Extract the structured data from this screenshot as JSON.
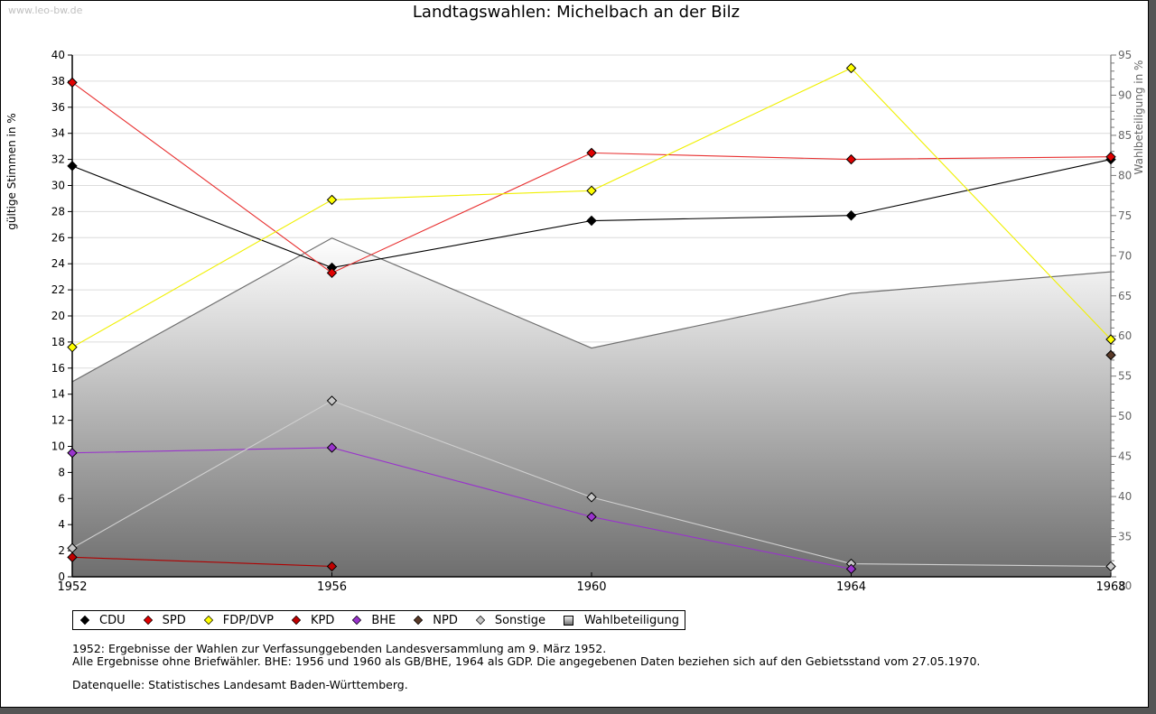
{
  "watermark": "www.leo-bw.de",
  "chart_data": {
    "type": "line",
    "title": "Landtagswahlen: Michelbach an der Bilz",
    "x": [
      1952,
      1956,
      1960,
      1964,
      1968
    ],
    "x_tick_labels": [
      "1952",
      "1956",
      "1960",
      "1964",
      "1968"
    ],
    "ylabel": "gültige Stimmen in %",
    "ylabel_right": "Wahlbeteiligung in %",
    "ylim": [
      0,
      40
    ],
    "ylim_right": [
      30,
      95
    ],
    "y_ticks": [
      "0",
      "2",
      "4",
      "6",
      "8",
      "10",
      "12",
      "14",
      "16",
      "18",
      "20",
      "22",
      "24",
      "26",
      "28",
      "30",
      "32",
      "34",
      "36",
      "38",
      "40"
    ],
    "y_ticks_right": [
      "30",
      "35",
      "40",
      "45",
      "50",
      "55",
      "60",
      "65",
      "70",
      "75",
      "80",
      "85",
      "90",
      "95"
    ],
    "grid": true,
    "legend_position": "bottom-left",
    "series": [
      {
        "name": "CDU",
        "color": "#000000",
        "line_color": "#000000",
        "values": [
          31.5,
          23.7,
          27.3,
          27.7,
          32.0
        ]
      },
      {
        "name": "SPD",
        "color": "#e00000",
        "line_color": "#e83030",
        "values": [
          37.9,
          23.3,
          32.5,
          32.0,
          32.2
        ]
      },
      {
        "name": "FDP/DVP",
        "color": "#ffff00",
        "line_color": "#f0f000",
        "values": [
          17.6,
          28.9,
          29.6,
          39.0,
          18.2
        ]
      },
      {
        "name": "KPD",
        "color": "#c00000",
        "line_color": "#b00000",
        "values": [
          1.5,
          0.8,
          null,
          null,
          null
        ]
      },
      {
        "name": "BHE",
        "color": "#9933cc",
        "line_color": "#9933cc",
        "values": [
          9.5,
          9.9,
          4.6,
          0.6,
          null
        ]
      },
      {
        "name": "NPD",
        "color": "#5a3a28",
        "line_color": "#5a3a28",
        "values": [
          null,
          null,
          null,
          null,
          17.0
        ]
      },
      {
        "name": "Sonstige",
        "color": "#c8c8c8",
        "line_color": "#d0d0d0",
        "values": [
          2.2,
          13.5,
          6.1,
          1.0,
          0.8
        ]
      }
    ],
    "area_series": {
      "name": "Wahlbeteiligung",
      "axis": "right",
      "color": "#808080",
      "values": [
        54.3,
        72.2,
        58.5,
        65.3,
        68.0
      ]
    }
  },
  "notes": [
    "1952: Ergebnisse der Wahlen zur Verfassunggebenden Landesversammlung am 9. März 1952.",
    "Alle Ergebnisse ohne Briefwähler. BHE: 1956 und 1960 als GB/BHE, 1964 als GDP. Die angegebenen Daten beziehen sich auf den Gebietsstand vom 27.05.1970."
  ],
  "source": "Datenquelle: Statistisches Landesamt Baden-Württemberg."
}
